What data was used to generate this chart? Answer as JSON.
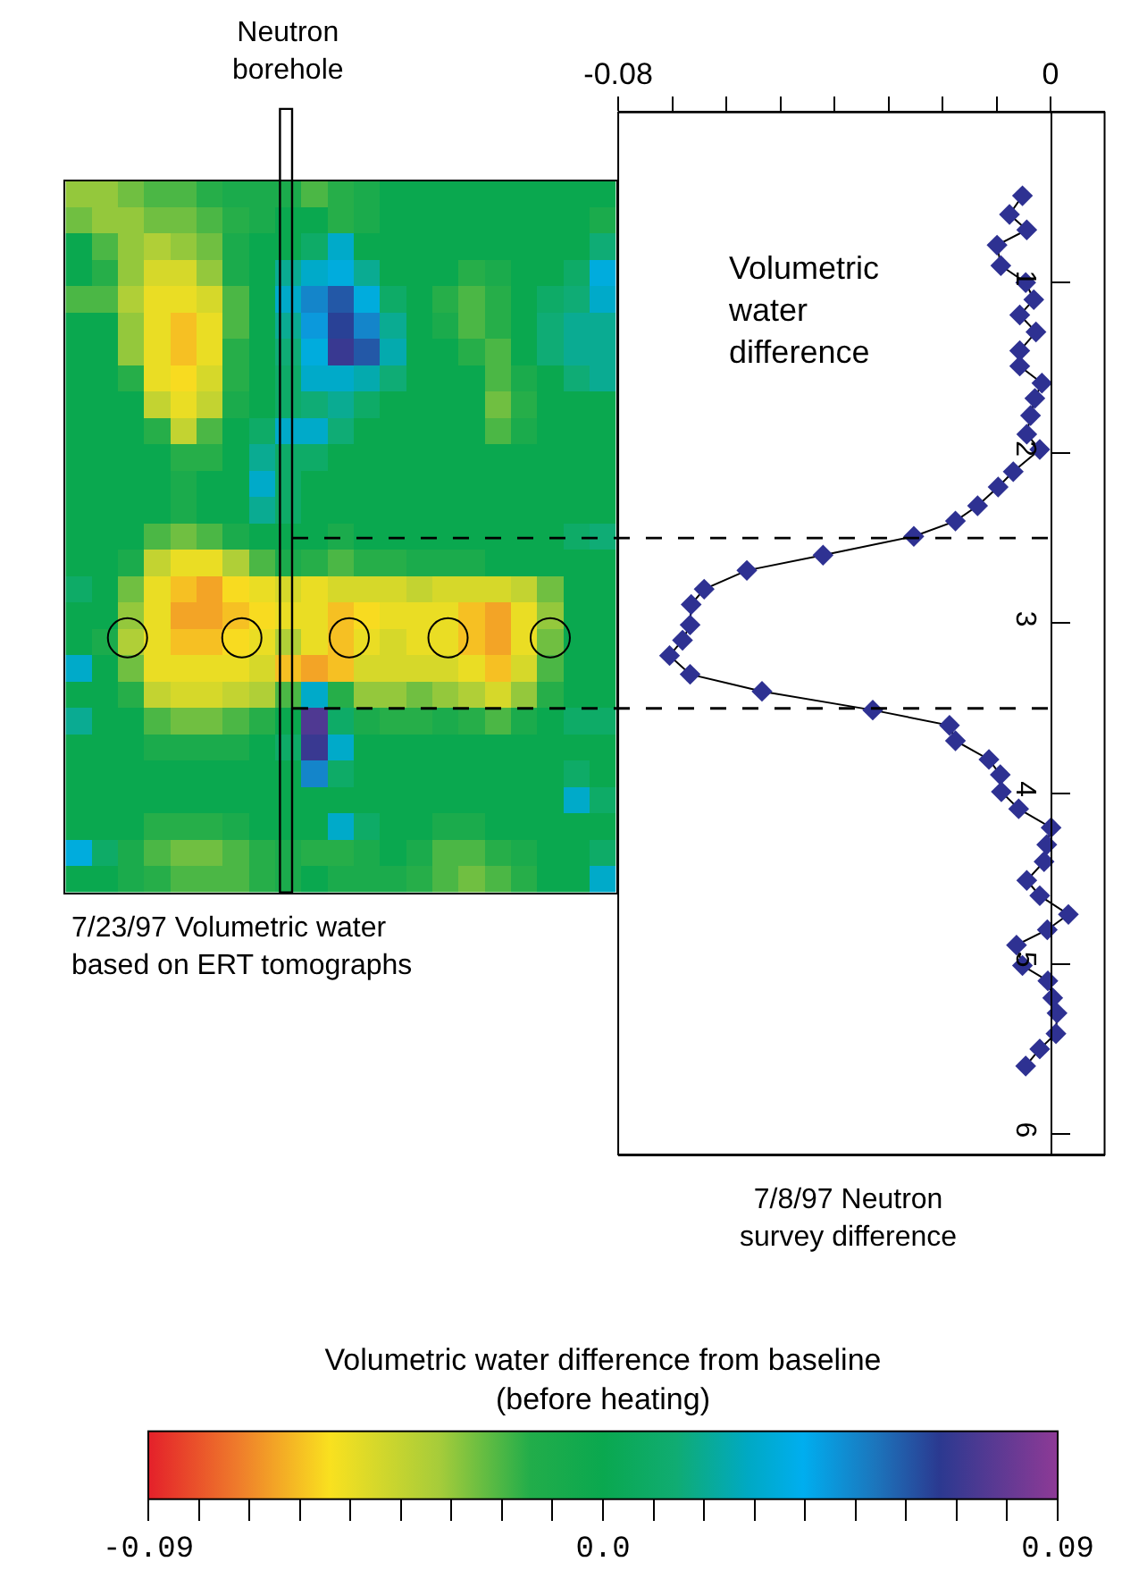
{
  "chart_data": [
    {
      "type": "heatmap",
      "title": "7/23/97 Volumetric water\nbased on ERT tomographs",
      "annotations": [
        "Neutron\nborehole"
      ],
      "tick_labels": false,
      "categories": [
        null,
        null,
        null,
        null,
        null,
        null,
        null,
        null,
        null,
        null,
        null,
        null,
        null,
        null,
        null,
        null,
        null,
        null,
        null,
        null,
        null
      ],
      "y_categories": [
        null,
        null,
        null,
        null,
        null,
        null,
        null,
        null,
        null,
        null,
        null,
        null,
        null,
        null,
        null,
        null,
        null,
        null,
        null,
        null,
        null,
        null,
        null,
        null,
        null,
        null,
        null
      ],
      "cells": [
        [
          -0.03,
          -0.03,
          -0.025,
          -0.02,
          -0.02,
          -0.015,
          -0.01,
          -0.01,
          -0.01,
          -0.02,
          -0.015,
          -0.01,
          0,
          0,
          0,
          0,
          0,
          0,
          0,
          0,
          0
        ],
        [
          -0.025,
          -0.03,
          -0.03,
          -0.025,
          -0.025,
          -0.02,
          -0.015,
          -0.01,
          0,
          0,
          -0.015,
          -0.01,
          0,
          0,
          0,
          0,
          0,
          0,
          0,
          0,
          -0.01
        ],
        [
          0,
          -0.02,
          -0.03,
          -0.035,
          -0.03,
          -0.025,
          -0.01,
          0,
          0,
          0.01,
          0.03,
          0,
          0,
          0,
          0,
          0,
          0,
          0,
          0,
          0,
          0.015
        ],
        [
          0,
          -0.015,
          -0.03,
          -0.045,
          -0.045,
          -0.03,
          -0.01,
          0,
          0.02,
          0.03,
          0.035,
          0.02,
          0,
          0,
          0,
          -0.015,
          -0.01,
          0,
          0,
          0.01,
          0.035
        ],
        [
          -0.02,
          -0.02,
          -0.035,
          -0.05,
          -0.05,
          -0.045,
          -0.02,
          0,
          0.03,
          0.05,
          0.06,
          0.035,
          0.01,
          0,
          -0.015,
          -0.02,
          -0.015,
          0,
          0.01,
          0.015,
          0.03
        ],
        [
          0,
          0,
          -0.03,
          -0.05,
          -0.06,
          -0.05,
          -0.02,
          0,
          0.02,
          0.045,
          0.065,
          0.05,
          0.02,
          0,
          -0.01,
          -0.02,
          -0.015,
          0,
          0.015,
          0.02,
          0.02
        ],
        [
          0,
          0,
          -0.03,
          -0.05,
          -0.06,
          -0.05,
          -0.015,
          0,
          0.015,
          0.035,
          0.07,
          0.06,
          0.025,
          0,
          0,
          -0.015,
          -0.02,
          0,
          0.015,
          0.02,
          0.02
        ],
        [
          0,
          0,
          -0.015,
          -0.05,
          -0.055,
          -0.045,
          -0.015,
          0,
          0.01,
          0.03,
          0.03,
          0.025,
          0.015,
          0,
          0,
          0,
          -0.02,
          -0.01,
          0,
          0.015,
          0.02
        ],
        [
          0,
          0,
          0,
          -0.04,
          -0.05,
          -0.04,
          -0.01,
          0,
          0.01,
          0.015,
          0.02,
          0.01,
          0,
          0,
          0,
          0,
          -0.025,
          -0.015,
          0,
          0,
          0
        ],
        [
          0,
          0,
          0,
          -0.015,
          -0.04,
          -0.02,
          0,
          0.01,
          0.03,
          0.03,
          0.015,
          0,
          0,
          0,
          0,
          0,
          -0.02,
          -0.01,
          0,
          0,
          0
        ],
        [
          0,
          0,
          0,
          0,
          -0.015,
          -0.015,
          0,
          0.02,
          0.01,
          0.01,
          0,
          0,
          0,
          0,
          0,
          0,
          0,
          0,
          0,
          0,
          0
        ],
        [
          0,
          0,
          0,
          0,
          -0.01,
          0,
          0,
          0.03,
          0.01,
          0,
          0,
          0,
          0,
          0,
          0,
          0,
          0,
          0,
          0,
          0,
          0
        ],
        [
          0,
          0,
          0,
          0,
          -0.01,
          0,
          0,
          0.02,
          0.01,
          0,
          0,
          0,
          0,
          0,
          0,
          0,
          0,
          0,
          0,
          0,
          0
        ],
        [
          0,
          0,
          0,
          -0.02,
          -0.025,
          -0.02,
          -0.01,
          0,
          0,
          0,
          -0.01,
          0,
          0,
          0,
          0,
          0,
          0,
          0,
          0,
          0.01,
          0.015
        ],
        [
          0,
          0,
          -0.01,
          -0.04,
          -0.05,
          -0.05,
          -0.035,
          -0.02,
          -0.01,
          -0.015,
          -0.02,
          -0.015,
          -0.015,
          -0.01,
          -0.01,
          -0.01,
          0,
          0,
          0,
          0,
          0
        ],
        [
          0.01,
          0,
          -0.025,
          -0.05,
          -0.06,
          -0.065,
          -0.055,
          -0.05,
          -0.045,
          -0.05,
          -0.045,
          -0.045,
          -0.045,
          -0.04,
          -0.045,
          -0.045,
          -0.045,
          -0.04,
          -0.025,
          0,
          0
        ],
        [
          0,
          0,
          -0.03,
          -0.05,
          -0.065,
          -0.065,
          -0.06,
          -0.055,
          -0.05,
          -0.05,
          -0.06,
          -0.055,
          -0.05,
          -0.05,
          -0.05,
          -0.06,
          -0.065,
          -0.05,
          -0.03,
          0,
          0
        ],
        [
          0,
          -0.01,
          -0.035,
          -0.05,
          -0.06,
          -0.06,
          -0.055,
          -0.05,
          -0.035,
          -0.05,
          -0.06,
          -0.05,
          -0.045,
          -0.05,
          -0.05,
          -0.06,
          -0.065,
          -0.05,
          -0.025,
          0,
          0
        ],
        [
          0.03,
          0,
          -0.025,
          -0.05,
          -0.05,
          -0.05,
          -0.05,
          -0.045,
          -0.06,
          -0.065,
          -0.06,
          -0.045,
          -0.045,
          -0.045,
          -0.045,
          -0.05,
          -0.06,
          -0.045,
          -0.02,
          0,
          0
        ],
        [
          0,
          0,
          -0.015,
          -0.04,
          -0.045,
          -0.045,
          -0.04,
          -0.035,
          -0.02,
          0.03,
          -0.015,
          -0.03,
          -0.03,
          -0.025,
          -0.03,
          -0.035,
          -0.045,
          -0.03,
          -0.015,
          0,
          0
        ],
        [
          0.02,
          0,
          0,
          -0.02,
          -0.025,
          -0.025,
          -0.02,
          -0.015,
          0,
          0.075,
          0.01,
          -0.01,
          -0.015,
          -0.015,
          -0.01,
          -0.015,
          -0.02,
          -0.01,
          0,
          0.01,
          0.01
        ],
        [
          0,
          0,
          0,
          -0.01,
          -0.01,
          -0.01,
          -0.01,
          0,
          0.01,
          0.07,
          0.03,
          0,
          0,
          0,
          0,
          0,
          0,
          0,
          0,
          0,
          0
        ],
        [
          0,
          0,
          0,
          0,
          0,
          0,
          0,
          0,
          0,
          0.05,
          0.01,
          0,
          0,
          0,
          0,
          0,
          0,
          0,
          0,
          0.01,
          0
        ],
        [
          0,
          0,
          0,
          0,
          0,
          0,
          0,
          0,
          0,
          0,
          0,
          0,
          0,
          0,
          0,
          0,
          0,
          0,
          0,
          0.03,
          0.01
        ],
        [
          0,
          0,
          0,
          -0.015,
          -0.015,
          -0.015,
          -0.01,
          0,
          0,
          0,
          0.03,
          0.01,
          0,
          0,
          -0.01,
          -0.01,
          0,
          0,
          0,
          0,
          0
        ],
        [
          0.035,
          0.01,
          -0.01,
          -0.02,
          -0.025,
          -0.025,
          -0.02,
          -0.015,
          -0.01,
          -0.015,
          -0.015,
          -0.01,
          0,
          -0.01,
          -0.02,
          -0.02,
          -0.015,
          -0.01,
          0,
          0,
          0.01
        ],
        [
          0,
          0,
          -0.01,
          -0.015,
          -0.02,
          -0.02,
          -0.02,
          -0.015,
          -0.01,
          0,
          -0.01,
          -0.01,
          -0.01,
          -0.015,
          -0.02,
          -0.025,
          -0.02,
          -0.015,
          0,
          0,
          0.03
        ]
      ],
      "clim": [
        -0.09,
        0.09
      ],
      "cticks": [
        -0.09,
        {
          "value": -0.08,
          "label": null
        },
        {
          "value": -0.07,
          "label": null
        },
        {
          "value": -0.06,
          "label": null
        },
        {
          "value": -0.05,
          "label": null
        },
        {
          "value": -0.04,
          "label": null
        },
        {
          "value": -0.03,
          "label": null
        },
        {
          "value": -0.02,
          "label": null
        },
        {
          "value": -0.01,
          "label": null
        },
        {
          "value": 0,
          "label": "0.0"
        },
        {
          "value": 0.01,
          "label": null
        },
        {
          "value": 0.02,
          "label": null
        },
        {
          "value": 0.03,
          "label": null
        },
        {
          "value": 0.04,
          "label": null
        },
        {
          "value": 0.05,
          "label": null
        },
        {
          "value": 0.06,
          "label": null
        },
        {
          "value": 0.07,
          "label": null
        },
        {
          "value": 0.08,
          "label": null
        },
        0.09
      ],
      "clabel": "Volumetric water difference from baseline\n(before heating)"
    },
    {
      "type": "line",
      "title": "7/8/97 Neutron\nsurvey difference",
      "annotations": [
        "Volumetric\nwater\ndifference"
      ],
      "marker": "diamond",
      "xlim": [
        -0.08,
        0.01
      ],
      "xticks": [
        -0.08,
        {
          "value": -0.07,
          "label": null
        },
        {
          "value": -0.06,
          "label": null
        },
        {
          "value": -0.05,
          "label": null
        },
        {
          "value": -0.04,
          "label": null
        },
        {
          "value": -0.03,
          "label": null
        },
        {
          "value": -0.02,
          "label": null
        },
        {
          "value": -0.01,
          "label": null
        },
        0
      ],
      "ylim": [
        6.12,
        0
      ],
      "yticks": [
        1,
        2,
        3,
        4,
        5,
        6
      ],
      "ref_lines": [
        {
          "axis": "y",
          "value": 2.5,
          "line_style": "dashed",
          "color": "#000000"
        },
        {
          "axis": "y",
          "value": 3.5,
          "line_style": "dashed",
          "color": "#000000"
        }
      ],
      "series": [
        {
          "color": "#2e3192",
          "x": [
            -0.0052,
            -0.0076,
            -0.0044,
            -0.0099,
            -0.0092,
            -0.0046,
            -0.0031,
            -0.0057,
            -0.0027,
            -0.0057,
            -0.0057,
            -0.0016,
            -0.0029,
            -0.0037,
            -0.0044,
            -0.002,
            -0.0069,
            -0.0097,
            -0.0135,
            -0.0176,
            -0.0253,
            -0.0421,
            -0.0562,
            -0.0641,
            -0.0665,
            -0.0667,
            -0.0681,
            -0.0705,
            -0.0667,
            -0.0534,
            -0.0329,
            -0.0187,
            -0.0176,
            -0.0114,
            -0.0093,
            -0.0091,
            -0.0059,
            0.0001,
            -0.0007,
            -0.0012,
            -0.0044,
            -0.002,
            0.0033,
            -0.0006,
            -0.0063,
            -0.0052,
            -0.0005,
            0.0004,
            0.0012,
            0.001,
            -0.002,
            -0.0046
          ],
          "values": [
            0.49,
            0.6,
            0.69,
            0.78,
            0.9,
            1.0,
            1.1,
            1.19,
            1.29,
            1.4,
            1.49,
            1.59,
            1.68,
            1.78,
            1.89,
            1.98,
            2.11,
            2.2,
            2.31,
            2.4,
            2.49,
            2.6,
            2.69,
            2.8,
            2.89,
            3.01,
            3.1,
            3.19,
            3.3,
            3.4,
            3.51,
            3.6,
            3.69,
            3.8,
            3.89,
            3.99,
            4.09,
            4.2,
            4.3,
            4.4,
            4.51,
            4.6,
            4.71,
            4.8,
            4.89,
            5.01,
            5.1,
            5.2,
            5.29,
            5.41,
            5.5,
            5.6
          ]
        }
      ]
    }
  ]
}
